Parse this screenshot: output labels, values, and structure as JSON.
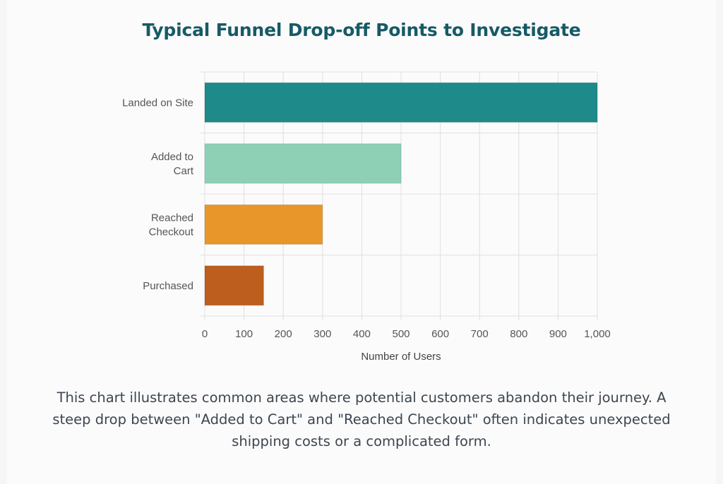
{
  "title": "Typical Funnel Drop-off Points to Investigate",
  "caption": "This chart illustrates common areas where potential customers abandon their journey. A steep drop between \"Added to Cart\" and \"Reached Checkout\" often indicates unexpected shipping costs or a complicated form.",
  "colors": {
    "title": "#175a66",
    "grid": "#e0e0e0"
  },
  "chart_data": {
    "type": "bar",
    "orientation": "horizontal",
    "categories": [
      "Landed on Site",
      "Added to Cart",
      "Reached Checkout",
      "Purchased"
    ],
    "category_lines": [
      [
        "Landed on Site"
      ],
      [
        "Added to",
        "Cart"
      ],
      [
        "Reached",
        "Checkout"
      ],
      [
        "Purchased"
      ]
    ],
    "values": [
      1000,
      500,
      300,
      150
    ],
    "colors": [
      "#1e8a8a",
      "#8dd0b5",
      "#e8962a",
      "#bd5d1e"
    ],
    "xlabel": "Number of Users",
    "ylabel": "",
    "xlim": [
      0,
      1000
    ],
    "xticks": [
      0,
      100,
      200,
      300,
      400,
      500,
      600,
      700,
      800,
      900,
      1000
    ],
    "xtick_labels": [
      "0",
      "100",
      "200",
      "300",
      "400",
      "500",
      "600",
      "700",
      "800",
      "900",
      "1,000"
    ],
    "grid": true,
    "legend": "none"
  }
}
